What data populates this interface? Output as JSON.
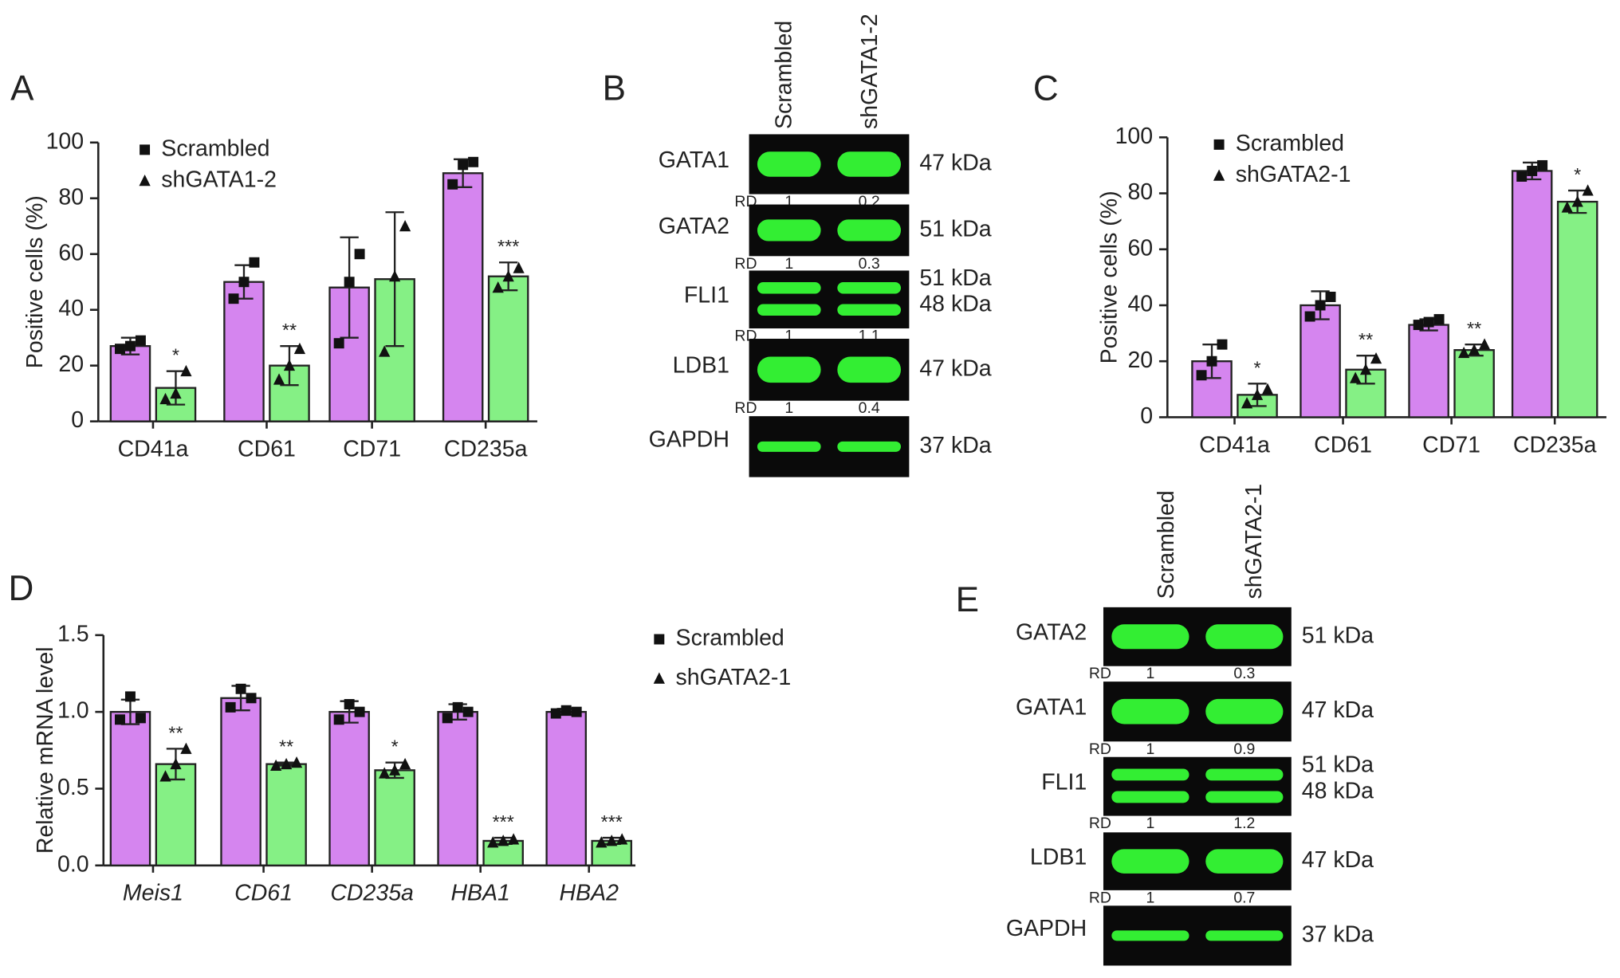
{
  "chart_data": [
    {
      "type": "bar",
      "panel": "A",
      "ylabel": "Positive cells (%)",
      "categories": [
        "CD41a",
        "CD61",
        "CD71",
        "CD235a"
      ],
      "ylim": [
        0,
        100
      ],
      "yticks": [
        0,
        20,
        40,
        60,
        80,
        100
      ],
      "series": [
        {
          "name": "Scrambled",
          "color": "#d585ef",
          "marker": "square",
          "values": [
            27,
            50,
            48,
            89
          ],
          "errors": [
            3,
            6,
            18,
            5
          ],
          "points": [
            [
              26,
              27,
              29
            ],
            [
              44,
              50,
              57
            ],
            [
              28,
              50,
              60
            ],
            [
              85,
              92,
              93
            ]
          ]
        },
        {
          "name": "shGATA1-2",
          "color": "#85f085",
          "marker": "triangle",
          "values": [
            12,
            20,
            51,
            52
          ],
          "errors": [
            6,
            7,
            24,
            5
          ],
          "points": [
            [
              8,
              10,
              18
            ],
            [
              15,
              20,
              26
            ],
            [
              25,
              52,
              70
            ],
            [
              48,
              52,
              55
            ]
          ],
          "significance": [
            "*",
            "**",
            null,
            "***"
          ]
        }
      ]
    },
    {
      "type": "bar",
      "panel": "C",
      "ylabel": "Positive cells (%)",
      "categories": [
        "CD41a",
        "CD61",
        "CD71",
        "CD235a"
      ],
      "ylim": [
        0,
        100
      ],
      "yticks": [
        0,
        20,
        40,
        60,
        80,
        100
      ],
      "series": [
        {
          "name": "Scrambled",
          "color": "#d585ef",
          "marker": "square",
          "values": [
            20,
            40,
            33,
            88
          ],
          "errors": [
            6,
            5,
            2,
            3
          ],
          "points": [
            [
              15,
              20,
              26
            ],
            [
              36,
              40,
              43
            ],
            [
              33,
              34,
              35
            ],
            [
              86,
              88,
              90
            ]
          ]
        },
        {
          "name": "shGATA2-1",
          "color": "#85f085",
          "marker": "triangle",
          "values": [
            8,
            17,
            24,
            77
          ],
          "errors": [
            4,
            5,
            2,
            4
          ],
          "points": [
            [
              5,
              8,
              10
            ],
            [
              14,
              17,
              21
            ],
            [
              23,
              24,
              26
            ],
            [
              75,
              77,
              81
            ]
          ],
          "significance": [
            "*",
            "**",
            "**",
            "*"
          ]
        }
      ]
    },
    {
      "type": "bar",
      "panel": "D",
      "ylabel": "Relative mRNA level",
      "italic_categories": true,
      "categories": [
        "Meis1",
        "CD61",
        "CD235a",
        "HBA1",
        "HBA2"
      ],
      "ylim": [
        0,
        1.5
      ],
      "yticks": [
        {
          "value": 0,
          "label": "0.0"
        },
        0.5,
        {
          "value": 1,
          "label": "1.0"
        },
        1.5
      ],
      "series": [
        {
          "name": "Scrambled",
          "color": "#d585ef",
          "marker": "square",
          "values": [
            1.0,
            1.09,
            1.0,
            1.0,
            1.0
          ],
          "errors": [
            0.08,
            0.08,
            0.07,
            0.05,
            0.02
          ],
          "points": [
            [
              0.95,
              1.1,
              0.96
            ],
            [
              1.03,
              1.15,
              1.09
            ],
            [
              0.95,
              1.05,
              1.0
            ],
            [
              0.96,
              1.03,
              1.0
            ],
            [
              0.99,
              1.01,
              1.0
            ]
          ]
        },
        {
          "name": "shGATA2-1",
          "color": "#85f085",
          "marker": "triangle",
          "values": [
            0.66,
            0.66,
            0.62,
            0.16,
            0.16
          ],
          "errors": [
            0.1,
            0.01,
            0.05,
            0.02,
            0.02
          ],
          "points": [
            [
              0.58,
              0.66,
              0.76
            ],
            [
              0.65,
              0.66,
              0.67
            ],
            [
              0.6,
              0.62,
              0.66
            ],
            [
              0.15,
              0.16,
              0.17
            ],
            [
              0.15,
              0.16,
              0.17
            ]
          ],
          "significance": [
            "**",
            "**",
            "*",
            "***",
            "***"
          ]
        }
      ]
    }
  ],
  "blots": [
    {
      "panel": "B",
      "lanes": [
        "Scrambled",
        "shGATA1-2"
      ],
      "rd_label": "RD",
      "rows": [
        {
          "label": "GATA1",
          "kda": [
            "47 kDa"
          ],
          "rd": [
            1,
            0.2
          ]
        },
        {
          "label": "GATA2",
          "kda": [
            "51 kDa"
          ],
          "rd": [
            1,
            0.3
          ]
        },
        {
          "label": "FLI1",
          "kda": [
            "51 kDa",
            "48 kDa"
          ],
          "rd": [
            1,
            1.1
          ]
        },
        {
          "label": "LDB1",
          "kda": [
            "47 kDa"
          ],
          "rd": [
            1,
            0.4
          ]
        },
        {
          "label": "GAPDH",
          "kda": [
            "37 kDa"
          ]
        }
      ]
    },
    {
      "panel": "E",
      "lanes": [
        "Scrambled",
        "shGATA2-1"
      ],
      "rd_label": "RD",
      "rows": [
        {
          "label": "GATA2",
          "kda": [
            "51 kDa"
          ],
          "rd": [
            1,
            0.3
          ]
        },
        {
          "label": "GATA1",
          "kda": [
            "47 kDa"
          ],
          "rd": [
            1,
            0.9
          ]
        },
        {
          "label": "FLI1",
          "kda": [
            "51 kDa",
            "48 kDa"
          ],
          "rd": [
            1,
            1.2
          ]
        },
        {
          "label": "LDB1",
          "kda": [
            "47 kDa"
          ],
          "rd": [
            1,
            0.7
          ]
        },
        {
          "label": "GAPDH",
          "kda": [
            "37 kDa"
          ]
        }
      ]
    }
  ]
}
